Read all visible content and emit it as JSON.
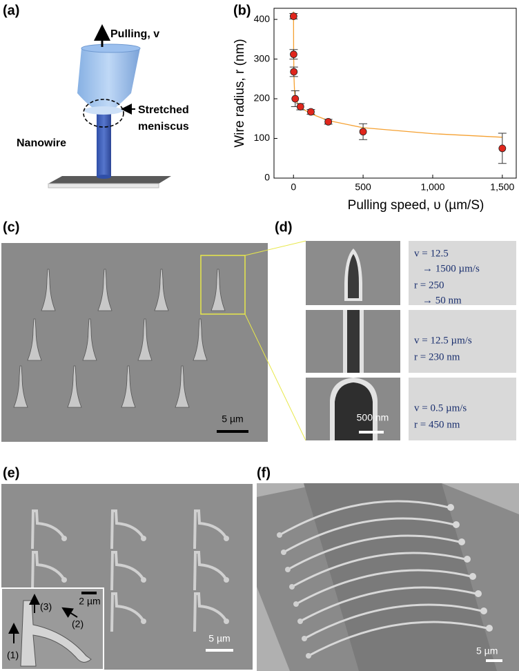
{
  "panel_labels": [
    "(a)",
    "(b)",
    "(c)",
    "(d)",
    "(e)",
    "(f)"
  ],
  "schematic": {
    "pulling": "Pulling, v",
    "meniscus": [
      "Stretched",
      "meniscus"
    ],
    "nanowire": "Nanowire"
  },
  "chart_data": {
    "type": "scatter",
    "x_label": "Pulling speed, υ (µm/S)",
    "y_label": "Wire radius, r (nm)",
    "xlim": [
      -140,
      1600
    ],
    "ylim": [
      0,
      428
    ],
    "xticks": [
      0,
      500,
      {
        "value": 1000,
        "label": "1,000"
      },
      {
        "value": 1500,
        "label": "1,500"
      }
    ],
    "yticks": [
      0,
      100,
      200,
      300,
      400
    ],
    "series": [
      {
        "style": "markers",
        "color": "#e0261c",
        "x": [
          0.5,
          1,
          2.5,
          12.5,
          50,
          125,
          250,
          500,
          1500
        ],
        "values": [
          408,
          312,
          268,
          200,
          180,
          167,
          142,
          117,
          75
        ],
        "errors": [
          7,
          12,
          12,
          20,
          8,
          6,
          6,
          20,
          38
        ]
      },
      {
        "style": "line",
        "color": "#f5a030",
        "x": [
          0.3,
          1,
          3,
          8,
          15,
          30,
          60,
          125,
          250,
          500,
          1000,
          1500
        ],
        "values": [
          420,
          330,
          260,
          215,
          200,
          188,
          176,
          162,
          145,
          127,
          112,
          103
        ]
      }
    ]
  },
  "sem_c": {
    "scale_bar": "5 µm"
  },
  "sem_d": {
    "scale_bar": "500 nm",
    "conditions": [
      [
        "v = 12.5",
        "→ 1500 µm/s",
        "r = 250",
        "→ 50 nm"
      ],
      [
        "v = 12.5 µm/s",
        "r = 230 nm"
      ],
      [
        "v = 0.5 µm/s",
        "r = 450 nm"
      ]
    ]
  },
  "sem_e": {
    "scale_bar": "5 µm",
    "inset_scale_bar": "2 µm",
    "steps": [
      "(1)",
      "(2)",
      "(3)"
    ]
  },
  "sem_f": {
    "scale_bar": "5 µm"
  }
}
